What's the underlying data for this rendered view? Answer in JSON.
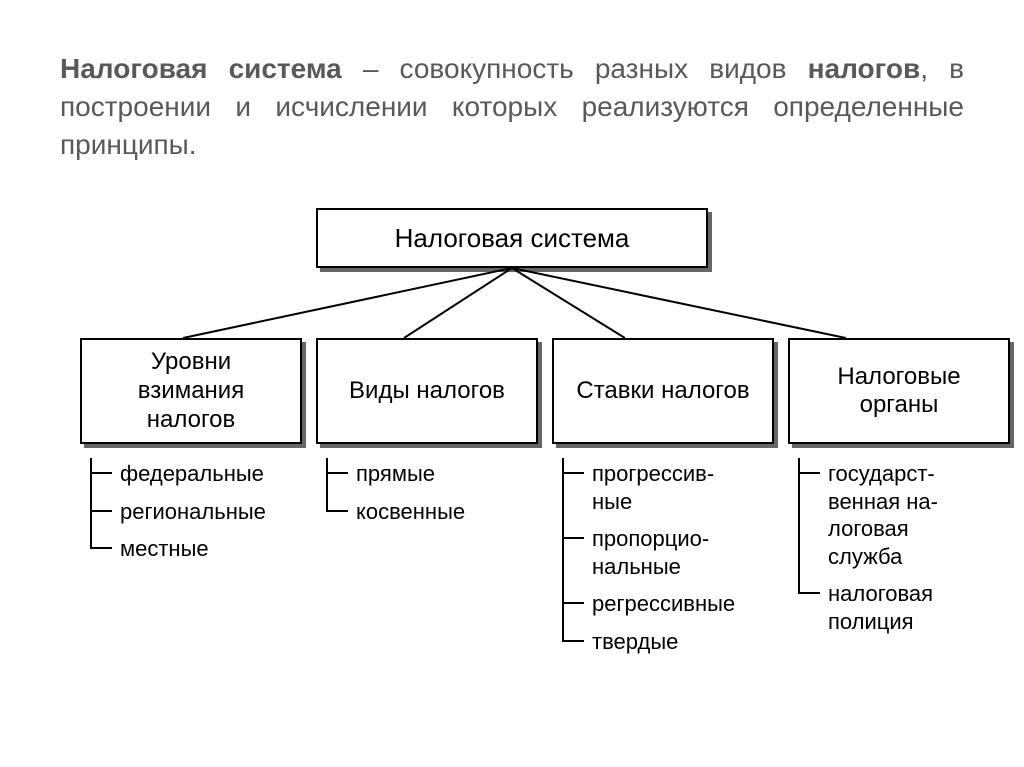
{
  "definition": {
    "parts": [
      {
        "text": "Налоговая система",
        "bold": true
      },
      {
        "text": " – совокупность разных видов ",
        "bold": false
      },
      {
        "text": "налогов",
        "bold": true
      },
      {
        "text": ", в построении и исчислении которых реализуются определенные принципы.",
        "bold": false
      }
    ],
    "fontsize": 28,
    "color": "#595959"
  },
  "diagram": {
    "type": "tree",
    "root": {
      "label": "Налоговая система",
      "fontsize": 26
    },
    "box_style": {
      "border_color": "#000000",
      "border_width": 2,
      "background": "#ffffff",
      "shadow": "4px 4px 0 rgba(0,0,0,0.6)",
      "text_color": "#000000"
    },
    "connector_color": "#000000",
    "children": [
      {
        "label": "Уровни взимания налогов",
        "items": [
          "федеральные",
          "региональные",
          "местные"
        ]
      },
      {
        "label": "Виды налогов",
        "items": [
          "прямые",
          "косвенные"
        ]
      },
      {
        "label": "Ставки налогов",
        "items": [
          "прогрессив-\nные",
          "пропорцио-\nнальные",
          "регрессивные",
          "твердые"
        ]
      },
      {
        "label": "Налоговые органы",
        "items": [
          "государст-\nвенная на-\nлоговая\nслужба",
          "налоговая\nполиция"
        ]
      }
    ],
    "child_box": {
      "width": 190,
      "height": 86,
      "fontsize": 24
    },
    "item_fontsize": 22
  }
}
